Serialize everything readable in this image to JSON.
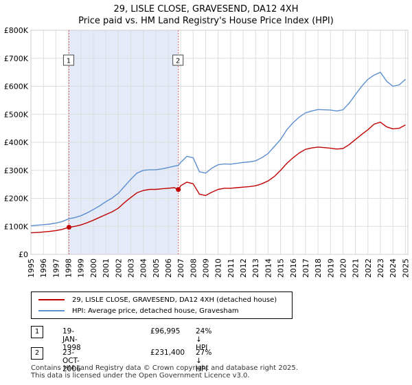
{
  "title_line1": "29, LISLE CLOSE, GRAVESEND, DA12 4XH",
  "title_line2": "Price paid vs. HM Land Registry's House Price Index (HPI)",
  "colors": {
    "property": "#c00000",
    "hpi": "#5b8fd0",
    "shade": "#e4eaf7",
    "grid": "#dddddd",
    "marker_line": "#e06060"
  },
  "legend": {
    "property_label": "29, LISLE CLOSE, GRAVESEND, DA12 4XH (detached house)",
    "hpi_label": "HPI: Average price, detached house, Gravesham"
  },
  "transactions": [
    {
      "num": "1",
      "date": "19-JAN-1998",
      "price": "£96,995",
      "hpi": "24% ↓ HPI"
    },
    {
      "num": "2",
      "date": "23-OCT-2006",
      "price": "£231,400",
      "hpi": "27% ↓ HPI"
    }
  ],
  "footer_line1": "Contains HM Land Registry data © Crown copyright and database right 2025.",
  "footer_line2": "This data is licensed under the Open Government Licence v3.0.",
  "chart_data": {
    "type": "line",
    "xlim": [
      1995,
      2025.2
    ],
    "ylim": [
      0,
      800000
    ],
    "y_ticks": [
      0,
      100000,
      200000,
      300000,
      400000,
      500000,
      600000,
      700000,
      800000
    ],
    "y_tick_labels": [
      "£0",
      "£100K",
      "£200K",
      "£300K",
      "£400K",
      "£500K",
      "£600K",
      "£700K",
      "£800K"
    ],
    "x_ticks": [
      "1995",
      "1996",
      "1997",
      "1998",
      "1999",
      "2000",
      "2001",
      "2002",
      "2003",
      "2004",
      "2005",
      "2006",
      "2007",
      "2008",
      "2009",
      "2010",
      "2011",
      "2012",
      "2013",
      "2014",
      "2015",
      "2016",
      "2017",
      "2018",
      "2019",
      "2020",
      "2021",
      "2022",
      "2023",
      "2024",
      "2025"
    ],
    "shaded_range": [
      1998.05,
      2006.81
    ],
    "markers": [
      {
        "label": "1",
        "x": 1998.05,
        "y": 96995
      },
      {
        "label": "2",
        "x": 2006.81,
        "y": 231400
      }
    ],
    "series": [
      {
        "name": "29, LISLE CLOSE, GRAVESEND, DA12 4XH (detached house)",
        "color": "#c00000",
        "x": [
          1995,
          1995.5,
          1996,
          1996.5,
          1997,
          1997.5,
          1998.05,
          1998.5,
          1999,
          1999.5,
          2000,
          2000.5,
          2001,
          2001.5,
          2002,
          2002.5,
          2003,
          2003.5,
          2004,
          2004.5,
          2005,
          2005.5,
          2006,
          2006.5,
          2006.81,
          2007,
          2007.5,
          2008,
          2008.5,
          2009,
          2009.5,
          2010,
          2010.5,
          2011,
          2011.5,
          2012,
          2012.5,
          2013,
          2013.5,
          2014,
          2014.5,
          2015,
          2015.5,
          2016,
          2016.5,
          2017,
          2017.5,
          2018,
          2018.5,
          2019,
          2019.5,
          2020,
          2020.5,
          2021,
          2021.5,
          2022,
          2022.5,
          2023,
          2023.5,
          2024,
          2024.5,
          2025
        ],
        "values": [
          77000,
          78000,
          80000,
          82000,
          85000,
          89000,
          96995,
          100000,
          105000,
          113000,
          122000,
          132000,
          142000,
          152000,
          165000,
          185000,
          203000,
          220000,
          228000,
          232000,
          232000,
          234000,
          236000,
          238000,
          231400,
          245000,
          258000,
          252000,
          215000,
          210000,
          222000,
          232000,
          236000,
          236000,
          238000,
          240000,
          242000,
          245000,
          252000,
          262000,
          278000,
          300000,
          325000,
          345000,
          362000,
          375000,
          380000,
          383000,
          381000,
          379000,
          376000,
          378000,
          392000,
          410000,
          428000,
          445000,
          465000,
          472000,
          455000,
          448000,
          450000,
          462000
        ]
      },
      {
        "name": "HPI: Average price, detached house, Gravesham",
        "color": "#5b8fd0",
        "x": [
          1995,
          1995.5,
          1996,
          1996.5,
          1997,
          1997.5,
          1998.05,
          1998.5,
          1999,
          1999.5,
          2000,
          2000.5,
          2001,
          2001.5,
          2002,
          2002.5,
          2003,
          2003.5,
          2004,
          2004.5,
          2005,
          2005.5,
          2006,
          2006.5,
          2006.81,
          2007,
          2007.5,
          2008,
          2008.5,
          2009,
          2009.5,
          2010,
          2010.5,
          2011,
          2011.5,
          2012,
          2012.5,
          2013,
          2013.5,
          2014,
          2014.5,
          2015,
          2015.5,
          2016,
          2016.5,
          2017,
          2017.5,
          2018,
          2018.5,
          2019,
          2019.5,
          2020,
          2020.5,
          2021,
          2021.5,
          2022,
          2022.5,
          2023,
          2023.5,
          2024,
          2024.5,
          2025
        ],
        "values": [
          102000,
          104000,
          106000,
          108000,
          112000,
          117000,
          127000,
          131000,
          138000,
          148000,
          160000,
          173000,
          188000,
          201000,
          218000,
          243000,
          268000,
          290000,
          300000,
          302000,
          302000,
          305000,
          310000,
          315000,
          318000,
          328000,
          350000,
          345000,
          295000,
          290000,
          308000,
          320000,
          323000,
          322000,
          325000,
          328000,
          330000,
          334000,
          345000,
          360000,
          385000,
          410000,
          445000,
          470000,
          490000,
          505000,
          512000,
          517000,
          516000,
          515000,
          512000,
          516000,
          540000,
          570000,
          600000,
          625000,
          640000,
          650000,
          618000,
          600000,
          605000,
          625000
        ]
      }
    ]
  }
}
